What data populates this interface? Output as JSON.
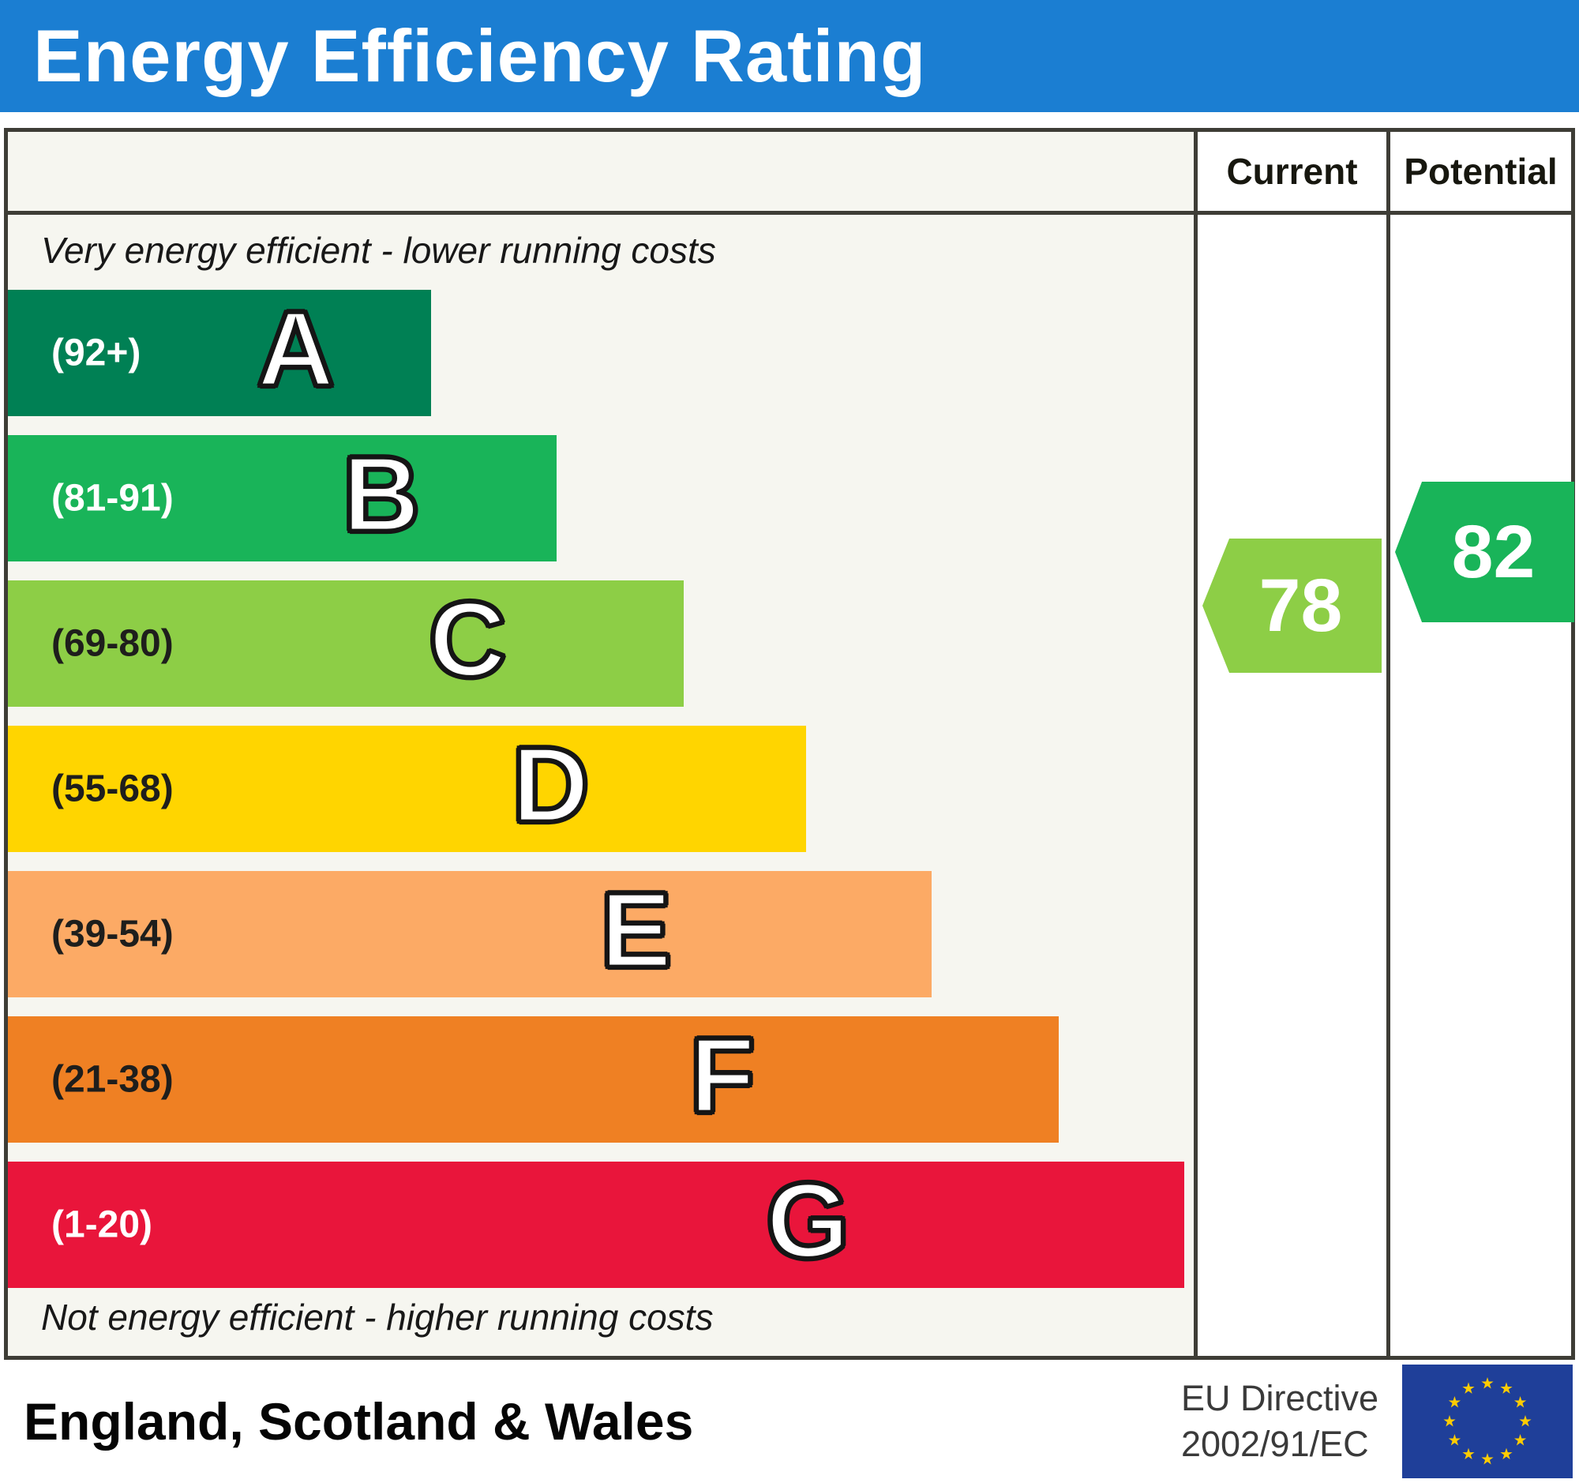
{
  "header": {
    "title": "Energy Efficiency Rating"
  },
  "table": {
    "columns": {
      "current": "Current",
      "potential": "Potential"
    },
    "top_note": "Very energy efficient - lower running costs",
    "bottom_note": "Not energy efficient - higher running costs"
  },
  "footer": {
    "region": "England, Scotland & Wales",
    "directive_line1": "EU Directive",
    "directive_line2": "2002/91/EC",
    "flag": "eu-flag"
  },
  "chart_data": {
    "type": "bar",
    "title": "Energy Efficiency Rating",
    "orientation": "horizontal",
    "scale": [
      1,
      100
    ],
    "bands": [
      {
        "letter": "A",
        "range_label": "(92+)",
        "range": [
          92,
          100
        ],
        "color": "#008054",
        "width_pct": 35.7,
        "label_color": "#ffffff"
      },
      {
        "letter": "B",
        "range_label": "(81-91)",
        "range": [
          81,
          91
        ],
        "color": "#19b459",
        "width_pct": 46.3,
        "label_color": "#ffffff"
      },
      {
        "letter": "C",
        "range_label": "(69-80)",
        "range": [
          69,
          80
        ],
        "color": "#8dce46",
        "width_pct": 57.0,
        "label_color": "#1e1e1c"
      },
      {
        "letter": "D",
        "range_label": "(55-68)",
        "range": [
          55,
          68
        ],
        "color": "#ffd500",
        "width_pct": 67.3,
        "label_color": "#1e1e1c"
      },
      {
        "letter": "E",
        "range_label": "(39-54)",
        "range": [
          39,
          54
        ],
        "color": "#fcaa65",
        "width_pct": 77.9,
        "label_color": "#1e1e1c"
      },
      {
        "letter": "F",
        "range_label": "(21-38)",
        "range": [
          21,
          38
        ],
        "color": "#ef8023",
        "width_pct": 88.6,
        "label_color": "#1e1e1c"
      },
      {
        "letter": "G",
        "range_label": "(1-20)",
        "range": [
          1,
          20
        ],
        "color": "#e9153b",
        "width_pct": 99.2,
        "label_color": "#ffffff"
      }
    ],
    "current": {
      "label": "Current",
      "value": 78,
      "band": "C",
      "color": "#8dce46"
    },
    "potential": {
      "label": "Potential",
      "value": 82,
      "band": "B",
      "color": "#19b459"
    }
  },
  "colors": {
    "header_bg": "#1b7ed2",
    "border": "#3e3d36",
    "eu_flag_blue": "#1f3f99",
    "eu_flag_star": "#ffcc00"
  }
}
